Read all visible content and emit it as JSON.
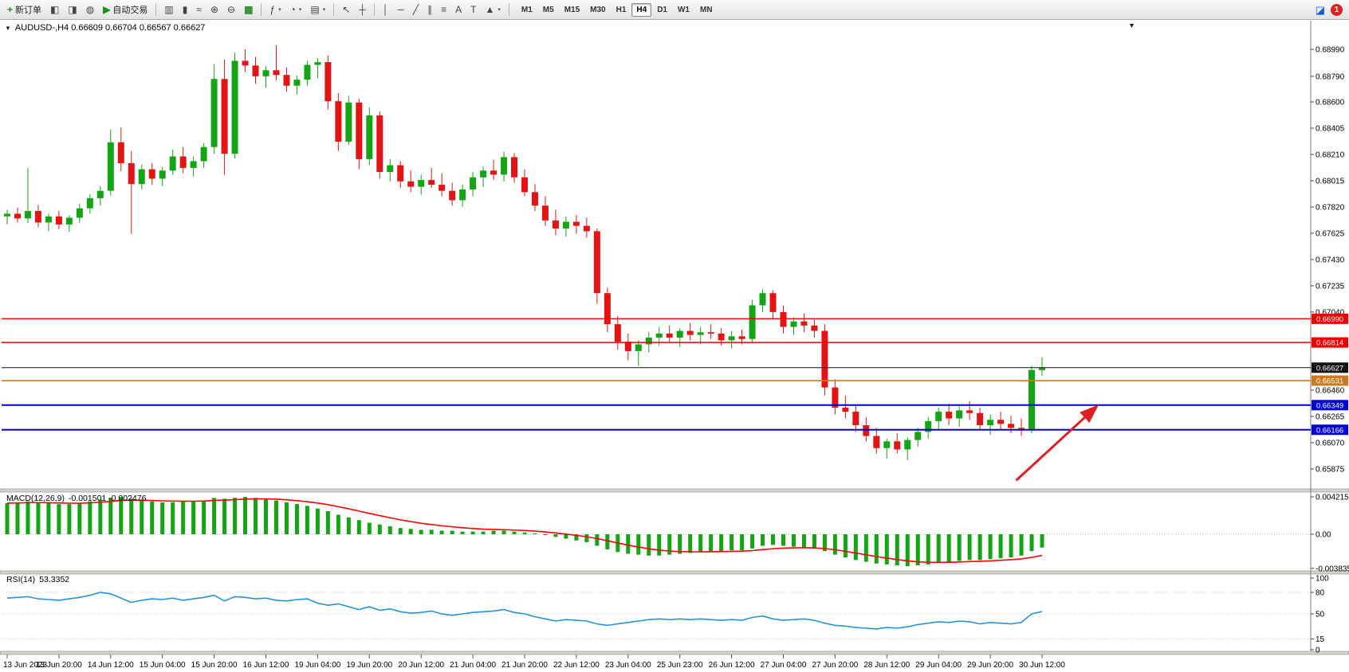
{
  "toolbar": {
    "items": [
      {
        "type": "btn",
        "name": "new-order",
        "glyph": "+",
        "glyphColor": "#169616",
        "label": "新订单"
      },
      {
        "type": "btn",
        "name": "chart-window",
        "glyph": "◧"
      },
      {
        "type": "btn",
        "name": "profiles",
        "glyph": "◨"
      },
      {
        "type": "btn",
        "name": "market-watch",
        "glyph": "◍"
      },
      {
        "type": "btn",
        "name": "auto-trading",
        "glyph": "▶",
        "glyphColor": "#169616",
        "label": "自动交易"
      },
      {
        "type": "sep"
      },
      {
        "type": "btn",
        "name": "bar-chart",
        "glyph": "▥"
      },
      {
        "type": "btn",
        "name": "candlestick-chart",
        "glyph": "▮"
      },
      {
        "type": "btn",
        "name": "line-chart",
        "glyph": "≈"
      },
      {
        "type": "btn",
        "name": "zoom-in",
        "glyph": "⊕"
      },
      {
        "type": "btn",
        "name": "zoom-out",
        "glyph": "⊖"
      },
      {
        "type": "btn",
        "name": "tile-windows",
        "glyph": "▦",
        "glyphColor": "#2a8a2a"
      },
      {
        "type": "sep"
      },
      {
        "type": "btn",
        "name": "indicators",
        "glyph": "ƒ",
        "caret": true
      },
      {
        "type": "btn",
        "name": "periods",
        "glyph": "◔",
        "caret": true
      },
      {
        "type": "btn",
        "name": "templates",
        "glyph": "▤",
        "caret": true
      },
      {
        "type": "sep"
      },
      {
        "type": "btn",
        "name": "cursor",
        "glyph": "↖"
      },
      {
        "type": "btn",
        "name": "crosshair",
        "glyph": "┼"
      },
      {
        "type": "sep"
      },
      {
        "type": "btn",
        "name": "vertical-line",
        "glyph": "│"
      },
      {
        "type": "btn",
        "name": "horizontal-line",
        "glyph": "─"
      },
      {
        "type": "btn",
        "name": "trendline",
        "glyph": "╱"
      },
      {
        "type": "btn",
        "name": "equidistant-channel",
        "glyph": "∥"
      },
      {
        "type": "btn",
        "name": "fibonacci",
        "glyph": "≡"
      },
      {
        "type": "btn",
        "name": "text",
        "glyph": "A"
      },
      {
        "type": "btn",
        "name": "text-label",
        "glyph": "T"
      },
      {
        "type": "btn",
        "name": "arrows",
        "glyph": "▲",
        "caret": true
      },
      {
        "type": "sep"
      }
    ],
    "timeframes": [
      "M1",
      "M5",
      "M15",
      "M30",
      "H1",
      "H4",
      "D1",
      "W1",
      "MN"
    ],
    "active_timeframe": "H4",
    "notification_count": "1"
  },
  "chart": {
    "title": "AUDUSD-,H4 0.66609 0.66704 0.66567 0.66627",
    "symbol_period": "AUDUSD-,H4",
    "open": "0.66609",
    "high": "0.66704",
    "low": "0.66567",
    "close": "0.66627",
    "collapse_glyph": "▼",
    "shift_marker_glyph": "▼"
  },
  "chart_data": {
    "type": "candlestick",
    "symbol": "AUDUSD",
    "timeframe": "H4",
    "colors": {
      "up": "#14a514",
      "down": "#e41414",
      "rsi": "#2593dc",
      "signal": "#ff0000"
    },
    "price_range": [
      0.65875,
      0.6899
    ],
    "candles": [
      [
        0.6775,
        0.678,
        0.6769,
        0.6777
      ],
      [
        0.6777,
        0.67815,
        0.67705,
        0.67735
      ],
      [
        0.67735,
        0.6811,
        0.677,
        0.6779
      ],
      [
        0.6779,
        0.67835,
        0.6767,
        0.67705
      ],
      [
        0.67705,
        0.6777,
        0.6764,
        0.6775
      ],
      [
        0.6775,
        0.6779,
        0.67655,
        0.6769
      ],
      [
        0.6769,
        0.6776,
        0.67635,
        0.6774
      ],
      [
        0.6774,
        0.67845,
        0.677,
        0.6781
      ],
      [
        0.6781,
        0.67915,
        0.6777,
        0.67885
      ],
      [
        0.67885,
        0.67975,
        0.6783,
        0.6794
      ],
      [
        0.6794,
        0.68395,
        0.67905,
        0.683
      ],
      [
        0.683,
        0.6841,
        0.68085,
        0.68145
      ],
      [
        0.68145,
        0.68235,
        0.6762,
        0.6799
      ],
      [
        0.6799,
        0.68135,
        0.6795,
        0.681
      ],
      [
        0.681,
        0.68145,
        0.67985,
        0.6803
      ],
      [
        0.6803,
        0.68115,
        0.67975,
        0.6809
      ],
      [
        0.6809,
        0.68245,
        0.6806,
        0.68195
      ],
      [
        0.68195,
        0.68265,
        0.6807,
        0.6811
      ],
      [
        0.6811,
        0.68195,
        0.68045,
        0.6816
      ],
      [
        0.6816,
        0.68295,
        0.6811,
        0.68265
      ],
      [
        0.68265,
        0.6888,
        0.68215,
        0.6877
      ],
      [
        0.6877,
        0.68915,
        0.6806,
        0.68215
      ],
      [
        0.68215,
        0.68965,
        0.6818,
        0.68905
      ],
      [
        0.68905,
        0.6899,
        0.6882,
        0.6887
      ],
      [
        0.6887,
        0.68935,
        0.68735,
        0.6879
      ],
      [
        0.6879,
        0.68865,
        0.68705,
        0.68835
      ],
      [
        0.68835,
        0.6902,
        0.6876,
        0.688
      ],
      [
        0.688,
        0.68855,
        0.68675,
        0.6872
      ],
      [
        0.6872,
        0.68795,
        0.68655,
        0.68765
      ],
      [
        0.68765,
        0.68905,
        0.6872,
        0.68875
      ],
      [
        0.68875,
        0.68925,
        0.68775,
        0.68895
      ],
      [
        0.68895,
        0.68945,
        0.68545,
        0.68605
      ],
      [
        0.68605,
        0.68665,
        0.68235,
        0.68305
      ],
      [
        0.68305,
        0.68645,
        0.6828,
        0.68595
      ],
      [
        0.68595,
        0.68625,
        0.681,
        0.68175
      ],
      [
        0.68175,
        0.6856,
        0.6813,
        0.685
      ],
      [
        0.685,
        0.6853,
        0.6803,
        0.6808
      ],
      [
        0.6808,
        0.68175,
        0.6801,
        0.6813
      ],
      [
        0.6813,
        0.6816,
        0.6796,
        0.6801
      ],
      [
        0.6801,
        0.6809,
        0.6793,
        0.6797
      ],
      [
        0.6797,
        0.6806,
        0.6791,
        0.6802
      ],
      [
        0.6802,
        0.6811,
        0.6796,
        0.67985
      ],
      [
        0.67985,
        0.6807,
        0.679,
        0.6794
      ],
      [
        0.6794,
        0.68,
        0.6783,
        0.6787
      ],
      [
        0.6787,
        0.67985,
        0.6782,
        0.6795
      ],
      [
        0.6795,
        0.6808,
        0.679,
        0.6804
      ],
      [
        0.6804,
        0.6812,
        0.6797,
        0.6809
      ],
      [
        0.6809,
        0.6817,
        0.6802,
        0.6806
      ],
      [
        0.6806,
        0.6823,
        0.6801,
        0.6819
      ],
      [
        0.6819,
        0.6822,
        0.68,
        0.6804
      ],
      [
        0.6804,
        0.681,
        0.679,
        0.6793
      ],
      [
        0.6793,
        0.6799,
        0.6779,
        0.6783
      ],
      [
        0.6783,
        0.679,
        0.6768,
        0.6772
      ],
      [
        0.6772,
        0.678,
        0.6761,
        0.6766
      ],
      [
        0.6766,
        0.6775,
        0.676,
        0.6771
      ],
      [
        0.6771,
        0.6776,
        0.6762,
        0.6768
      ],
      [
        0.6768,
        0.6774,
        0.6759,
        0.6764
      ],
      [
        0.6764,
        0.6766,
        0.671,
        0.6718
      ],
      [
        0.6718,
        0.6722,
        0.6689,
        0.6695
      ],
      [
        0.6695,
        0.6701,
        0.6676,
        0.6682
      ],
      [
        0.6682,
        0.6688,
        0.6668,
        0.6675
      ],
      [
        0.6675,
        0.6683,
        0.6664,
        0.668
      ],
      [
        0.668,
        0.6689,
        0.6674,
        0.6685
      ],
      [
        0.6685,
        0.6693,
        0.6679,
        0.6688
      ],
      [
        0.6688,
        0.6694,
        0.6681,
        0.6685
      ],
      [
        0.6685,
        0.6692,
        0.6678,
        0.669
      ],
      [
        0.669,
        0.6696,
        0.6683,
        0.6687
      ],
      [
        0.6687,
        0.6693,
        0.668,
        0.6689
      ],
      [
        0.6689,
        0.6695,
        0.6684,
        0.6688
      ],
      [
        0.6688,
        0.6692,
        0.6679,
        0.6683
      ],
      [
        0.6683,
        0.669,
        0.6677,
        0.6686
      ],
      [
        0.6686,
        0.6691,
        0.668,
        0.6684
      ],
      [
        0.6684,
        0.6713,
        0.6682,
        0.6709
      ],
      [
        0.6709,
        0.6721,
        0.6704,
        0.6718
      ],
      [
        0.6718,
        0.672,
        0.6699,
        0.6704
      ],
      [
        0.6704,
        0.6709,
        0.6688,
        0.6693
      ],
      [
        0.6693,
        0.67,
        0.6687,
        0.6697
      ],
      [
        0.6697,
        0.6703,
        0.6689,
        0.6694
      ],
      [
        0.6694,
        0.6699,
        0.6685,
        0.669
      ],
      [
        0.669,
        0.6695,
        0.6642,
        0.6648
      ],
      [
        0.6648,
        0.6654,
        0.6628,
        0.6633
      ],
      [
        0.6633,
        0.6642,
        0.6625,
        0.663
      ],
      [
        0.663,
        0.6635,
        0.6615,
        0.662
      ],
      [
        0.662,
        0.6626,
        0.6608,
        0.6612
      ],
      [
        0.6612,
        0.6618,
        0.6599,
        0.6603
      ],
      [
        0.6603,
        0.661,
        0.6595,
        0.6608
      ],
      [
        0.6608,
        0.6614,
        0.6599,
        0.6602
      ],
      [
        0.6602,
        0.6611,
        0.6594,
        0.6609
      ],
      [
        0.6609,
        0.6618,
        0.6604,
        0.6615
      ],
      [
        0.6615,
        0.6626,
        0.661,
        0.6623
      ],
      [
        0.6623,
        0.6633,
        0.6616,
        0.663
      ],
      [
        0.663,
        0.6636,
        0.662,
        0.6625
      ],
      [
        0.6625,
        0.6634,
        0.6619,
        0.6631
      ],
      [
        0.6631,
        0.6638,
        0.6624,
        0.6629
      ],
      [
        0.6629,
        0.6633,
        0.6616,
        0.662
      ],
      [
        0.662,
        0.6628,
        0.6613,
        0.6624
      ],
      [
        0.6624,
        0.663,
        0.6617,
        0.6621
      ],
      [
        0.6621,
        0.6627,
        0.6614,
        0.6618
      ],
      [
        0.6618,
        0.6625,
        0.6612,
        0.6616
      ],
      [
        0.6616,
        0.6664,
        0.6614,
        0.6661
      ],
      [
        0.66609,
        0.66704,
        0.66567,
        0.66627
      ]
    ],
    "time_labels": [
      "13 Jun 2023",
      "13 Jun 20:00",
      "14 Jun 12:00",
      "15 Jun 04:00",
      "15 Jun 20:00",
      "16 Jun 12:00",
      "19 Jun 04:00",
      "19 Jun 20:00",
      "20 Jun 12:00",
      "21 Jun 04:00",
      "21 Jun 20:00",
      "22 Jun 12:00",
      "23 Jun 04:00",
      "25 Jun 23:00",
      "26 Jun 12:00",
      "27 Jun 04:00",
      "27 Jun 20:00",
      "28 Jun 12:00",
      "29 Jun 04:00",
      "29 Jun 20:00",
      "30 Jun 12:00"
    ],
    "price_axis_labels": [
      "0.68990",
      "0.68790",
      "0.68600",
      "0.68405",
      "0.68210",
      "0.68015",
      "0.67820",
      "0.67625",
      "0.67430",
      "0.67235",
      "0.67040",
      "0.66460",
      "0.66265",
      "0.66070",
      "0.65875"
    ],
    "hlines": [
      {
        "price": 0.6699,
        "label": "0.66990",
        "color": "#ee0000",
        "w": 1.4
      },
      {
        "price": 0.66814,
        "label": "0.66814",
        "color": "#ee0000",
        "w": 1.4
      },
      {
        "price": 0.66627,
        "label": "0.66627",
        "color": "#111111",
        "w": 1
      },
      {
        "price": 0.66531,
        "label": "0.66531",
        "color": "#cc7a22",
        "w": 1.6
      },
      {
        "price": 0.66349,
        "label": "0.66349",
        "color": "#0000dd",
        "w": 2
      },
      {
        "price": 0.66166,
        "label": "0.66166",
        "color": "#0000dd",
        "w": 2
      }
    ],
    "macd": {
      "label": "MACD(12,26,9)",
      "value_text": "-0.001501 -0.002476",
      "axis_labels": [
        "0.004215",
        "0.00",
        "-0.003835"
      ],
      "histogram": [
        0.0035,
        0.0036,
        0.0037,
        0.0036,
        0.0035,
        0.0034,
        0.0034,
        0.0035,
        0.0037,
        0.0039,
        0.0041,
        0.0042,
        0.004,
        0.0038,
        0.0037,
        0.0036,
        0.0036,
        0.0037,
        0.0037,
        0.0038,
        0.0041,
        0.004,
        0.0041,
        0.0042,
        0.0041,
        0.004,
        0.0038,
        0.0036,
        0.0034,
        0.0032,
        0.0029,
        0.0026,
        0.0022,
        0.0019,
        0.0016,
        0.0013,
        0.0011,
        0.0009,
        0.0007,
        0.0006,
        0.0005,
        0.0005,
        0.0004,
        0.0004,
        0.0003,
        0.0003,
        0.0003,
        0.0004,
        0.0004,
        0.0003,
        0.0002,
        0.0001,
        -0.0001,
        -0.0003,
        -0.0005,
        -0.0007,
        -0.0009,
        -0.0013,
        -0.0017,
        -0.002,
        -0.0022,
        -0.0023,
        -0.0024,
        -0.0024,
        -0.0023,
        -0.0022,
        -0.0021,
        -0.002,
        -0.0019,
        -0.0019,
        -0.0018,
        -0.0018,
        -0.0016,
        -0.0013,
        -0.0012,
        -0.0013,
        -0.0014,
        -0.0015,
        -0.0016,
        -0.0019,
        -0.0023,
        -0.0026,
        -0.0029,
        -0.0031,
        -0.0033,
        -0.0034,
        -0.0035,
        -0.0036,
        -0.0035,
        -0.0034,
        -0.0032,
        -0.0031,
        -0.003,
        -0.0029,
        -0.0029,
        -0.0028,
        -0.0027,
        -0.0026,
        -0.0024,
        -0.0019,
        -0.0015
      ]
    },
    "rsi": {
      "label": "RSI(14)",
      "value_text": "53.3352",
      "axis_labels": [
        "100",
        "80",
        "50",
        "15",
        "0"
      ],
      "levels": [
        80,
        50,
        15
      ],
      "values": [
        72,
        73,
        74,
        71,
        70,
        69,
        71,
        73,
        76,
        80,
        78,
        72,
        66,
        69,
        71,
        70,
        72,
        69,
        71,
        73,
        76,
        68,
        74,
        73,
        71,
        72,
        69,
        68,
        70,
        71,
        65,
        62,
        64,
        60,
        56,
        60,
        55,
        57,
        53,
        51,
        52,
        54,
        50,
        48,
        50,
        52,
        53,
        54,
        56,
        52,
        50,
        46,
        43,
        40,
        42,
        41,
        40,
        36,
        34,
        36,
        38,
        40,
        42,
        43,
        42,
        43,
        42,
        43,
        42,
        41,
        42,
        41,
        45,
        47,
        43,
        41,
        42,
        43,
        41,
        37,
        34,
        33,
        31,
        30,
        29,
        31,
        30,
        32,
        35,
        37,
        39,
        38,
        40,
        39,
        36,
        38,
        37,
        36,
        38,
        50,
        53.34
      ]
    },
    "arrow": {
      "tail": {
        "bar": 97.5,
        "price": 0.6579
      },
      "head": {
        "bar": 105.3,
        "price": 0.6634
      },
      "color": "#e02020"
    }
  }
}
